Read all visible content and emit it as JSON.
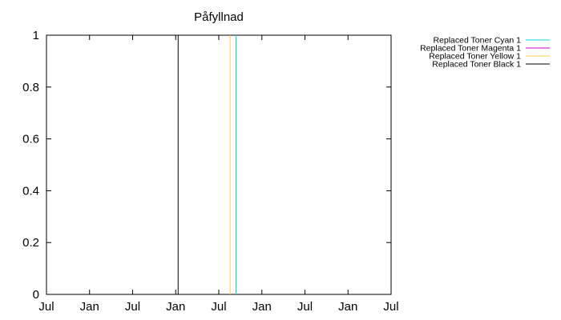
{
  "chart_data": {
    "type": "line",
    "title": "Påfyllnad",
    "xlabel": "",
    "ylabel": "",
    "ylim": [
      0,
      1
    ],
    "yticks": [
      0,
      0.2,
      0.4,
      0.6,
      0.8,
      1
    ],
    "ytick_labels": [
      "0",
      "0.2",
      "0.4",
      "0.6",
      "0.8",
      "1"
    ],
    "xtick_labels": [
      "Jul",
      "Jan",
      "Jul",
      "Jan",
      "Jul",
      "Jan",
      "Jul",
      "Jan",
      "Jul"
    ],
    "grid": false,
    "legend_placement": "top-right, outside plot",
    "series": [
      {
        "name": "Replaced Toner Cyan 1",
        "color": "#00dddd",
        "x_fraction": 0.55,
        "values": [
          0,
          1
        ]
      },
      {
        "name": "Replaced Toner Magenta 1",
        "color": "#cc00cc",
        "x_fraction": null,
        "values": []
      },
      {
        "name": "Replaced Toner Yellow 1",
        "color": "#ffcc44",
        "x_fraction": 0.533,
        "values": [
          0,
          1
        ]
      },
      {
        "name": "Replaced Toner Black 1",
        "color": "#000000",
        "x_fraction": 0.382,
        "values": [
          0,
          1
        ]
      }
    ]
  }
}
